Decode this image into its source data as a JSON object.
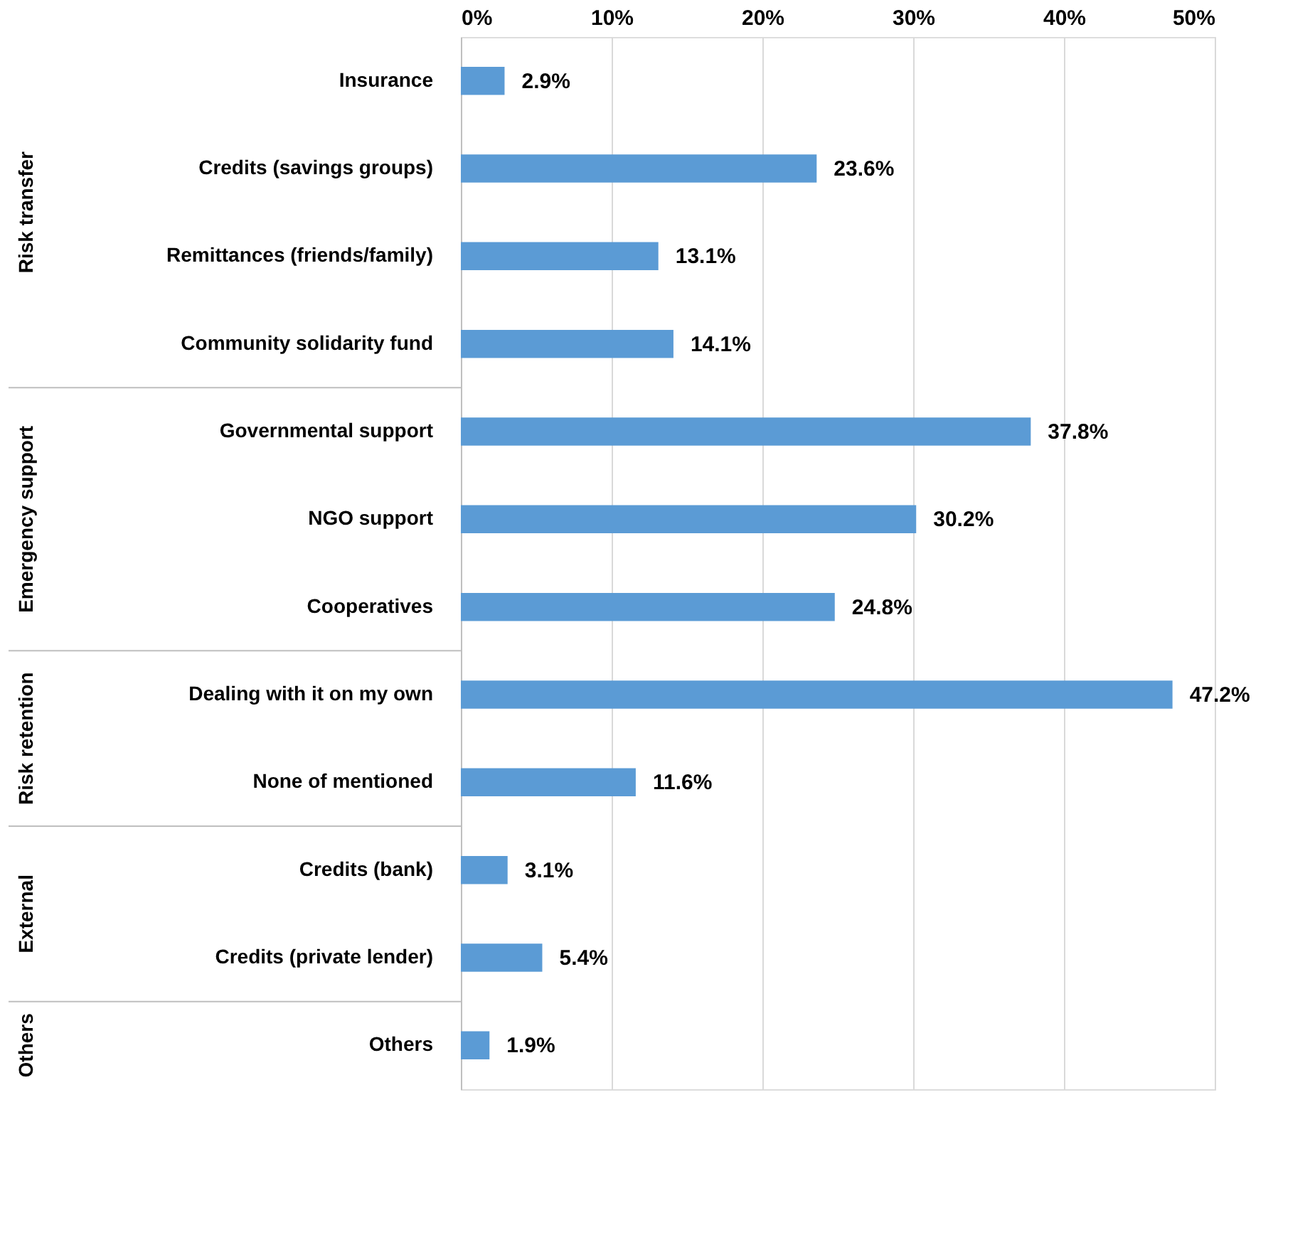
{
  "chart_data": {
    "type": "bar",
    "orientation": "horizontal",
    "categories": [
      "Insurance",
      "Credits (savings groups)",
      "Remittances (friends/family)",
      "Community solidarity fund",
      "Governmental support",
      "NGO support",
      "Cooperatives",
      "Dealing with it on my own",
      "None of mentioned",
      "Credits (bank)",
      "Credits (private lender)",
      "Others"
    ],
    "values": [
      2.9,
      23.6,
      13.1,
      14.1,
      37.8,
      30.2,
      24.8,
      47.2,
      11.6,
      3.1,
      5.4,
      1.9
    ],
    "value_labels": [
      "2.9%",
      "23.6%",
      "13.1%",
      "14.1%",
      "37.8%",
      "30.2%",
      "24.8%",
      "47.2%",
      "11.6%",
      "3.1%",
      "5.4%",
      "1.9%"
    ],
    "color": "#5b9bd5",
    "xlim": [
      0,
      50
    ],
    "xticks": [
      {
        "value": 0,
        "label": "0%"
      },
      {
        "value": 10,
        "label": "10%"
      },
      {
        "value": 20,
        "label": "20%"
      },
      {
        "value": 30,
        "label": "30%"
      },
      {
        "value": 40,
        "label": "40%"
      },
      {
        "value": 50,
        "label": "50%"
      }
    ],
    "grid": "x",
    "annotations": [
      "Risk transfer",
      "Emergency support",
      "Risk retention",
      "External",
      "Others"
    ]
  }
}
